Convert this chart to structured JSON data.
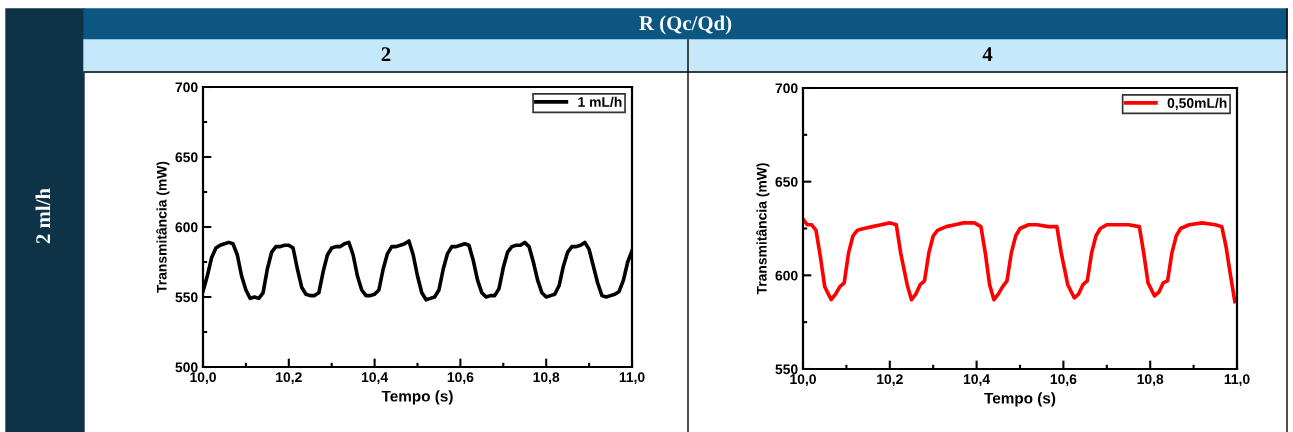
{
  "chart_data": [
    {
      "type": "line",
      "title": "2",
      "annotations": [
        "R (Qc/Qd)",
        "2 ml/h"
      ],
      "xlabel": "Tempo (s)",
      "ylabel": "Transmitância (mW)",
      "xlim": [
        10.0,
        11.0
      ],
      "ylim": [
        500,
        700
      ],
      "xticks": [
        {
          "value": 10.0,
          "label": "10,0"
        },
        {
          "value": 10.2,
          "label": "10,2"
        },
        {
          "value": 10.4,
          "label": "10,4"
        },
        {
          "value": 10.6,
          "label": "10,6"
        },
        {
          "value": 10.8,
          "label": "10,8"
        },
        {
          "value": 11.0,
          "label": "11,0"
        }
      ],
      "yticks": [
        500,
        550,
        600,
        650,
        700
      ],
      "grid": false,
      "legend": "top right",
      "marker": "none",
      "line_style": "solid",
      "series": [
        {
          "name": "1 mL/h",
          "color": "#000000",
          "x": [
            10.0,
            10.01,
            10.02,
            10.03,
            10.04,
            10.05,
            10.06,
            10.07,
            10.08,
            10.09,
            10.1,
            10.11,
            10.12,
            10.13,
            10.14,
            10.15,
            10.16,
            10.17,
            10.18,
            10.19,
            10.2,
            10.21,
            10.22,
            10.23,
            10.24,
            10.25,
            10.26,
            10.27,
            10.28,
            10.29,
            10.3,
            10.31,
            10.32,
            10.33,
            10.34,
            10.35,
            10.36,
            10.37,
            10.38,
            10.39,
            10.4,
            10.41,
            10.42,
            10.43,
            10.44,
            10.45,
            10.46,
            10.47,
            10.48,
            10.49,
            10.5,
            10.51,
            10.52,
            10.53,
            10.54,
            10.55,
            10.56,
            10.57,
            10.58,
            10.59,
            10.6,
            10.61,
            10.62,
            10.63,
            10.64,
            10.65,
            10.66,
            10.67,
            10.68,
            10.69,
            10.7,
            10.71,
            10.72,
            10.73,
            10.74,
            10.75,
            10.76,
            10.77,
            10.78,
            10.79,
            10.8,
            10.81,
            10.82,
            10.83,
            10.84,
            10.85,
            10.86,
            10.87,
            10.88,
            10.89,
            10.9,
            10.91,
            10.92,
            10.93,
            10.94,
            10.95,
            10.96,
            10.97,
            10.98,
            10.99,
            11.0
          ],
          "values": [
            554,
            565,
            578,
            585,
            587,
            588,
            589,
            588,
            580,
            565,
            555,
            549,
            550,
            549,
            553,
            570,
            582,
            586,
            586,
            587,
            587,
            585,
            570,
            557,
            552,
            551,
            551,
            553,
            568,
            580,
            585,
            586,
            586,
            588,
            589,
            580,
            565,
            555,
            551,
            551,
            552,
            555,
            570,
            581,
            586,
            586,
            587,
            588,
            590,
            580,
            565,
            553,
            548,
            549,
            550,
            555,
            570,
            581,
            586,
            586,
            587,
            588,
            587,
            576,
            562,
            553,
            550,
            551,
            551,
            556,
            571,
            582,
            586,
            587,
            587,
            589,
            586,
            575,
            562,
            553,
            550,
            551,
            552,
            558,
            572,
            582,
            586,
            586,
            587,
            589,
            584,
            572,
            560,
            551,
            550,
            551,
            552,
            554,
            562,
            575,
            583
          ]
        }
      ]
    },
    {
      "type": "line",
      "title": "4",
      "xlabel": "Tempo (s)",
      "ylabel": "Transmitância (mW)",
      "xlim": [
        10.0,
        11.0
      ],
      "ylim": [
        550,
        700
      ],
      "xticks": [
        {
          "value": 10.0,
          "label": "10,0"
        },
        {
          "value": 10.2,
          "label": "10,2"
        },
        {
          "value": 10.4,
          "label": "10,4"
        },
        {
          "value": 10.6,
          "label": "10,6"
        },
        {
          "value": 10.8,
          "label": "10,8"
        },
        {
          "value": 11.0,
          "label": "11,0"
        }
      ],
      "yticks": [
        550,
        600,
        650,
        700
      ],
      "grid": false,
      "legend": "top right",
      "marker": "none",
      "line_style": "solid",
      "series": [
        {
          "name": "0,50mL/h",
          "color": "#ff0000",
          "x": [
            10.0,
            10.01,
            10.02,
            10.03,
            10.04,
            10.05,
            10.065,
            10.075,
            10.085,
            10.095,
            10.105,
            10.115,
            10.125,
            10.14,
            10.16,
            10.18,
            10.2,
            10.215,
            10.225,
            10.24,
            10.25,
            10.26,
            10.27,
            10.28,
            10.29,
            10.3,
            10.31,
            10.33,
            10.35,
            10.37,
            10.395,
            10.41,
            10.42,
            10.43,
            10.44,
            10.45,
            10.46,
            10.47,
            10.48,
            10.49,
            10.5,
            10.52,
            10.54,
            10.565,
            10.585,
            10.595,
            10.61,
            10.625,
            10.635,
            10.645,
            10.655,
            10.665,
            10.675,
            10.685,
            10.7,
            10.72,
            10.75,
            10.775,
            10.785,
            10.795,
            10.81,
            10.82,
            10.83,
            10.84,
            10.85,
            10.86,
            10.87,
            10.89,
            10.92,
            10.95,
            10.965,
            10.975,
            10.985,
            10.995
          ],
          "values": [
            630,
            627,
            627,
            624,
            610,
            594,
            587,
            590,
            594,
            596,
            612,
            621,
            624,
            625,
            626,
            627,
            628,
            627,
            612,
            595,
            587,
            590,
            595,
            597,
            612,
            621,
            624,
            626,
            627,
            628,
            628,
            626,
            612,
            595,
            587,
            590,
            594,
            597,
            612,
            621,
            625,
            627,
            627,
            626,
            626,
            612,
            595,
            588,
            590,
            595,
            597,
            612,
            621,
            625,
            627,
            627,
            627,
            626,
            612,
            596,
            589,
            591,
            596,
            597,
            612,
            621,
            625,
            627,
            628,
            627,
            626,
            615,
            600,
            586
          ]
        }
      ]
    }
  ]
}
